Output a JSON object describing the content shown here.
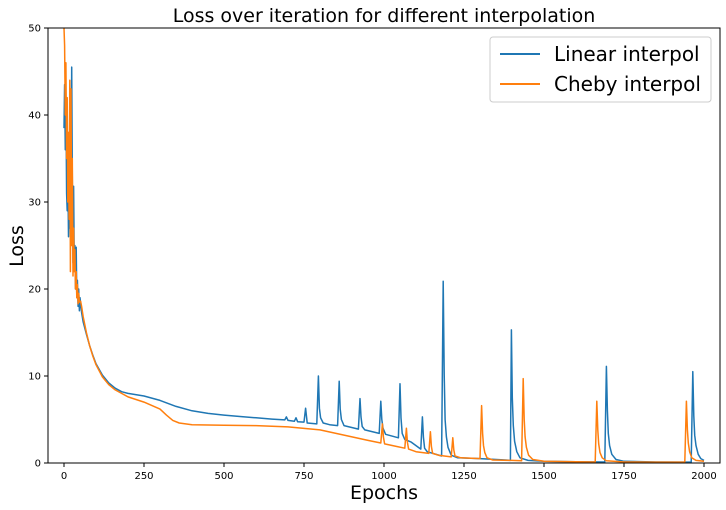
{
  "chart_data": {
    "type": "line",
    "title": "Loss over iteration for different interpolation",
    "xlabel": "Epochs",
    "ylabel": "Loss",
    "xlim": [
      -50,
      2050
    ],
    "ylim": [
      0,
      50
    ],
    "xticks": [
      0,
      250,
      500,
      750,
      1000,
      1250,
      1500,
      1750,
      2000
    ],
    "yticks": [
      0,
      10,
      20,
      30,
      40,
      50
    ],
    "grid": false,
    "legend_position": "top-right",
    "series": [
      {
        "name": "Linear interpol",
        "color": "#1f77b4",
        "points": [
          [
            0,
            38.5
          ],
          [
            2,
            43.5
          ],
          [
            4,
            36
          ],
          [
            6,
            42
          ],
          [
            8,
            31
          ],
          [
            10,
            29
          ],
          [
            12,
            34
          ],
          [
            14,
            26
          ],
          [
            16,
            31
          ],
          [
            18,
            27
          ],
          [
            20,
            37
          ],
          [
            22,
            30
          ],
          [
            24,
            45.5
          ],
          [
            26,
            33
          ],
          [
            28,
            23
          ],
          [
            30,
            31.8
          ],
          [
            32,
            24
          ],
          [
            34,
            25
          ],
          [
            36,
            20
          ],
          [
            38,
            24.8
          ],
          [
            40,
            19
          ],
          [
            42,
            21
          ],
          [
            44,
            18
          ],
          [
            46,
            20
          ],
          [
            48,
            17.5
          ],
          [
            50,
            19
          ],
          [
            55,
            17.3
          ],
          [
            60,
            16.2
          ],
          [
            70,
            14.8
          ],
          [
            80,
            13.5
          ],
          [
            90,
            12.4
          ],
          [
            100,
            11.4
          ],
          [
            120,
            10.1
          ],
          [
            140,
            9.2
          ],
          [
            160,
            8.6
          ],
          [
            180,
            8.2
          ],
          [
            200,
            8.0
          ],
          [
            250,
            7.7
          ],
          [
            300,
            7.2
          ],
          [
            350,
            6.5
          ],
          [
            400,
            6.0
          ],
          [
            450,
            5.7
          ],
          [
            500,
            5.5
          ],
          [
            550,
            5.35
          ],
          [
            600,
            5.2
          ],
          [
            650,
            5.05
          ],
          [
            690,
            4.95
          ],
          [
            695,
            5.3
          ],
          [
            700,
            4.9
          ],
          [
            720,
            4.8
          ],
          [
            725,
            5.2
          ],
          [
            730,
            4.75
          ],
          [
            750,
            4.7
          ],
          [
            755,
            6.3
          ],
          [
            760,
            4.6
          ],
          [
            790,
            4.5
          ],
          [
            795,
            10.0
          ],
          [
            798,
            6.3
          ],
          [
            802,
            5.2
          ],
          [
            810,
            4.6
          ],
          [
            830,
            4.4
          ],
          [
            855,
            4.3
          ],
          [
            860,
            9.4
          ],
          [
            863,
            6.2
          ],
          [
            867,
            5.0
          ],
          [
            875,
            4.3
          ],
          [
            920,
            3.9
          ],
          [
            925,
            7.4
          ],
          [
            928,
            5.3
          ],
          [
            932,
            4.2
          ],
          [
            940,
            3.8
          ],
          [
            985,
            3.4
          ],
          [
            990,
            7.1
          ],
          [
            993,
            5.0
          ],
          [
            997,
            4.0
          ],
          [
            1005,
            3.3
          ],
          [
            1045,
            2.9
          ],
          [
            1050,
            9.1
          ],
          [
            1053,
            5.2
          ],
          [
            1057,
            3.4
          ],
          [
            1065,
            2.7
          ],
          [
            1085,
            2.4
          ],
          [
            1115,
            1.6
          ],
          [
            1120,
            5.3
          ],
          [
            1123,
            3.0
          ],
          [
            1127,
            1.7
          ],
          [
            1135,
            1.3
          ],
          [
            1180,
            0.8
          ],
          [
            1185,
            20.9
          ],
          [
            1188,
            10.2
          ],
          [
            1191,
            5.0
          ],
          [
            1195,
            3.0
          ],
          [
            1200,
            1.8
          ],
          [
            1210,
            0.9
          ],
          [
            1230,
            0.6
          ],
          [
            1300,
            0.5
          ],
          [
            1380,
            0.35
          ],
          [
            1395,
            0.3
          ],
          [
            1398,
            15.3
          ],
          [
            1401,
            7.5
          ],
          [
            1404,
            4.3
          ],
          [
            1408,
            2.5
          ],
          [
            1415,
            1.3
          ],
          [
            1425,
            0.6
          ],
          [
            1450,
            0.3
          ],
          [
            1500,
            0.2
          ],
          [
            1600,
            0.15
          ],
          [
            1690,
            0.12
          ],
          [
            1695,
            11.1
          ],
          [
            1698,
            6.0
          ],
          [
            1701,
            3.4
          ],
          [
            1705,
            2.0
          ],
          [
            1712,
            1.0
          ],
          [
            1725,
            0.4
          ],
          [
            1750,
            0.2
          ],
          [
            1850,
            0.12
          ],
          [
            1960,
            0.1
          ],
          [
            1965,
            10.5
          ],
          [
            1968,
            5.4
          ],
          [
            1971,
            3.2
          ],
          [
            1975,
            2.0
          ],
          [
            1982,
            1.0
          ],
          [
            1990,
            0.5
          ],
          [
            2000,
            0.3
          ]
        ]
      },
      {
        "name": "Cheby interpol",
        "color": "#ff7f0e",
        "points": [
          [
            0,
            50
          ],
          [
            2,
            48
          ],
          [
            4,
            40
          ],
          [
            6,
            46
          ],
          [
            8,
            35
          ],
          [
            10,
            42
          ],
          [
            12,
            30
          ],
          [
            14,
            38
          ],
          [
            16,
            28
          ],
          [
            18,
            44
          ],
          [
            20,
            22
          ],
          [
            22,
            43
          ],
          [
            24,
            25
          ],
          [
            26,
            35
          ],
          [
            28,
            21.5
          ],
          [
            30,
            27
          ],
          [
            32,
            22
          ],
          [
            34,
            24.5
          ],
          [
            36,
            20
          ],
          [
            38,
            22
          ],
          [
            40,
            19
          ],
          [
            42,
            20.5
          ],
          [
            44,
            18.3
          ],
          [
            46,
            19.5
          ],
          [
            48,
            18.5
          ],
          [
            52,
            18.6
          ],
          [
            55,
            18
          ],
          [
            60,
            16.8
          ],
          [
            70,
            15
          ],
          [
            80,
            13.5
          ],
          [
            90,
            12.3
          ],
          [
            100,
            11.3
          ],
          [
            120,
            9.9
          ],
          [
            140,
            9.0
          ],
          [
            160,
            8.4
          ],
          [
            180,
            8.0
          ],
          [
            200,
            7.6
          ],
          [
            250,
            7.0
          ],
          [
            300,
            6.2
          ],
          [
            320,
            5.5
          ],
          [
            340,
            4.9
          ],
          [
            360,
            4.6
          ],
          [
            400,
            4.4
          ],
          [
            500,
            4.35
          ],
          [
            600,
            4.3
          ],
          [
            700,
            4.15
          ],
          [
            800,
            3.8
          ],
          [
            850,
            3.4
          ],
          [
            900,
            3.0
          ],
          [
            950,
            2.6
          ],
          [
            990,
            2.3
          ],
          [
            995,
            4.5
          ],
          [
            998,
            3.0
          ],
          [
            1002,
            2.2
          ],
          [
            1040,
            1.9
          ],
          [
            1065,
            1.7
          ],
          [
            1070,
            4.0
          ],
          [
            1073,
            2.4
          ],
          [
            1077,
            1.6
          ],
          [
            1100,
            1.3
          ],
          [
            1140,
            1.1
          ],
          [
            1145,
            3.6
          ],
          [
            1148,
            1.9
          ],
          [
            1152,
            1.1
          ],
          [
            1170,
            0.9
          ],
          [
            1210,
            0.7
          ],
          [
            1215,
            2.9
          ],
          [
            1218,
            1.5
          ],
          [
            1222,
            0.8
          ],
          [
            1240,
            0.6
          ],
          [
            1300,
            0.5
          ],
          [
            1305,
            6.6
          ],
          [
            1308,
            3.4
          ],
          [
            1311,
            2.0
          ],
          [
            1315,
            1.2
          ],
          [
            1322,
            0.6
          ],
          [
            1340,
            0.35
          ],
          [
            1400,
            0.3
          ],
          [
            1430,
            0.25
          ],
          [
            1435,
            9.7
          ],
          [
            1438,
            5.0
          ],
          [
            1441,
            3.0
          ],
          [
            1445,
            1.8
          ],
          [
            1452,
            0.9
          ],
          [
            1465,
            0.4
          ],
          [
            1500,
            0.2
          ],
          [
            1600,
            0.15
          ],
          [
            1660,
            0.12
          ],
          [
            1665,
            7.1
          ],
          [
            1668,
            3.8
          ],
          [
            1671,
            2.2
          ],
          [
            1675,
            1.2
          ],
          [
            1682,
            0.6
          ],
          [
            1695,
            0.25
          ],
          [
            1750,
            0.12
          ],
          [
            1850,
            0.1
          ],
          [
            1940,
            0.1
          ],
          [
            1945,
            7.1
          ],
          [
            1948,
            3.8
          ],
          [
            1951,
            2.3
          ],
          [
            1955,
            1.3
          ],
          [
            1962,
            0.6
          ],
          [
            1975,
            0.3
          ],
          [
            2000,
            0.2
          ]
        ]
      }
    ]
  }
}
